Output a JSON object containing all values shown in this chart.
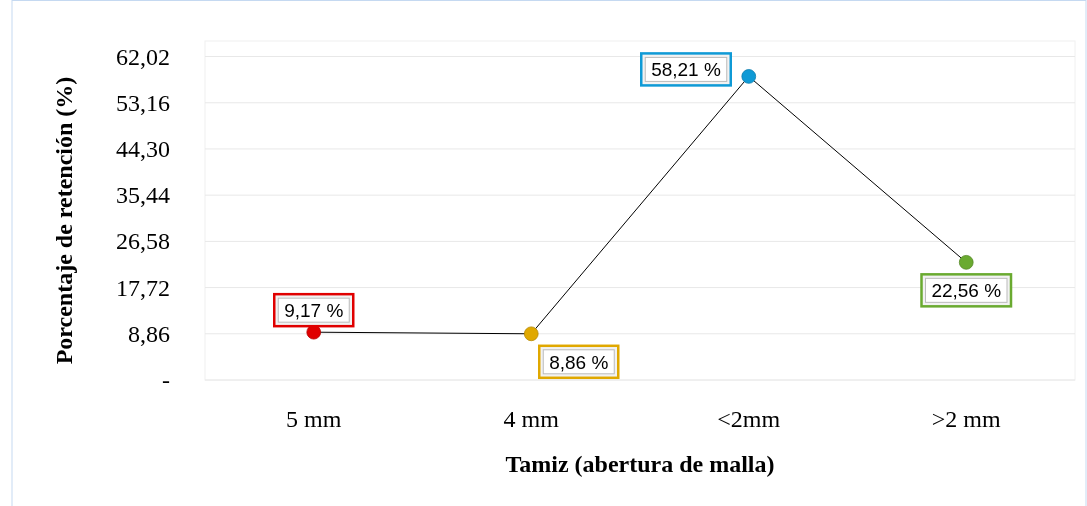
{
  "chart_data": {
    "type": "line",
    "xlabel": "Tamiz (abertura de malla)",
    "ylabel": "Porcentaje de retención (%)",
    "categories": [
      "5 mm",
      "4 mm",
      "<2mm",
      ">2 mm"
    ],
    "series": [
      {
        "color": "#000000",
        "colors": [
          "#e00000",
          "#e0a800",
          "#0f9ad6",
          "#6aaa30"
        ],
        "values": [
          9.17,
          8.86,
          58.21,
          22.56
        ],
        "value_labels": [
          "9,17 %",
          "8,86 %",
          "58,21 %",
          "22,56 %"
        ]
      }
    ],
    "ylim": [
      0,
      65
    ],
    "yticks": [
      {
        "value": 0,
        "label": "-"
      },
      {
        "value": 8.86,
        "label": "8,86"
      },
      {
        "value": 17.72,
        "label": "17,72"
      },
      {
        "value": 26.58,
        "label": "26,58"
      },
      {
        "value": 35.44,
        "label": "35,44"
      },
      {
        "value": 44.3,
        "label": "44,30"
      },
      {
        "value": 53.16,
        "label": "53,16"
      },
      {
        "value": 62.02,
        "label": "62,02"
      }
    ],
    "grid": "y",
    "marker": "circle",
    "line_style": "solid"
  }
}
